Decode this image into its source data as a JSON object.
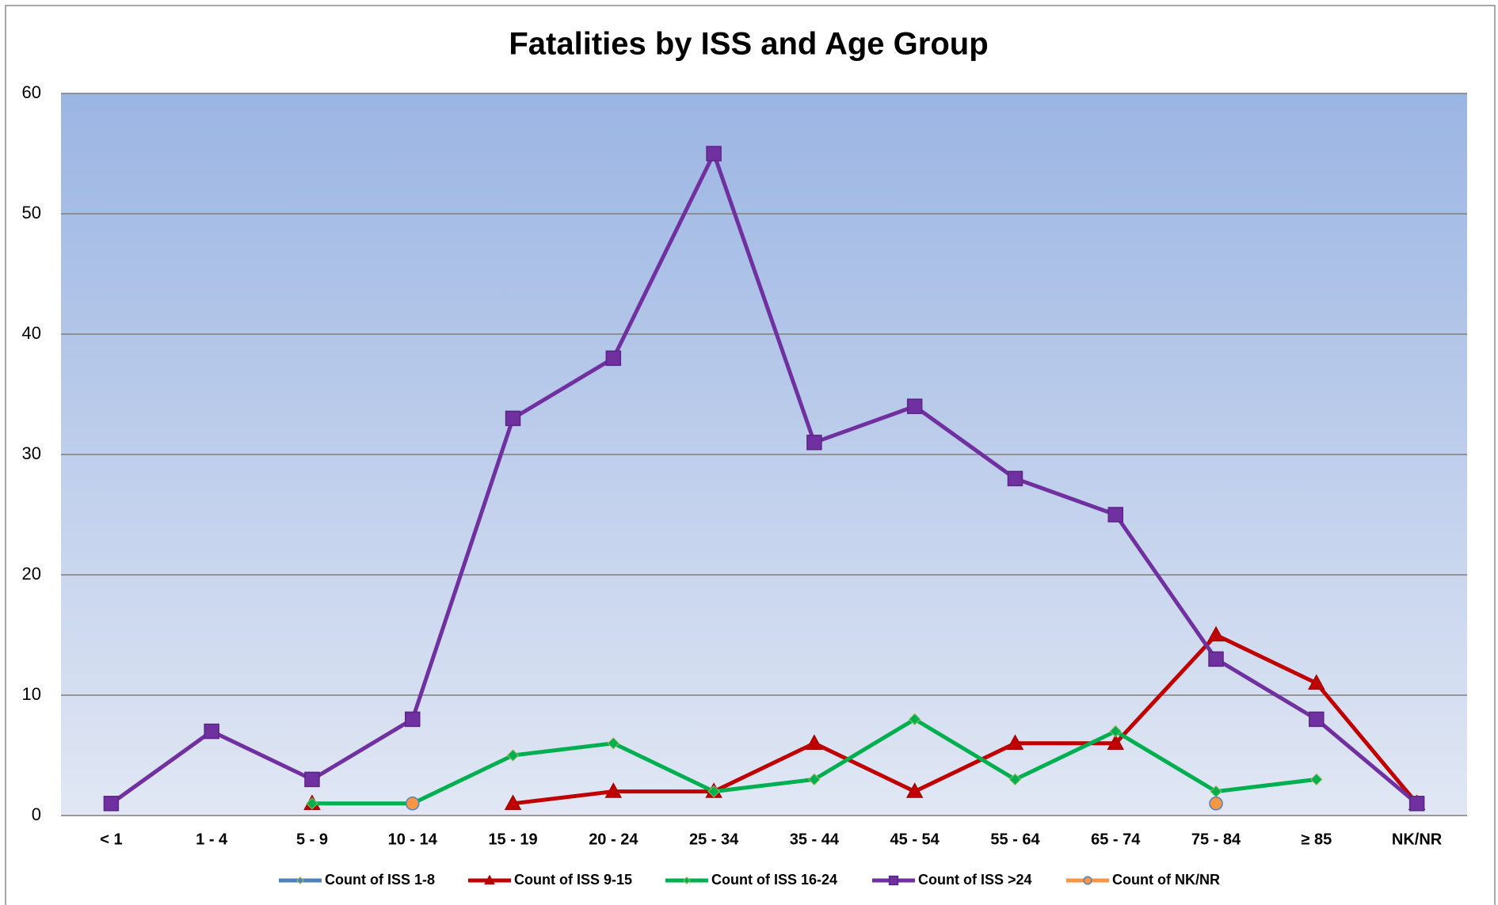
{
  "chart_data": {
    "type": "line",
    "title": "Fatalities by ISS and Age Group",
    "categories": [
      "< 1",
      "1 - 4",
      "5 - 9",
      "10 - 14",
      "15 - 19",
      "20 - 24",
      "25 - 34",
      "35 - 44",
      "45 - 54",
      "55 - 64",
      "65 - 74",
      "75 - 84",
      "≥ 85",
      "NK/NR"
    ],
    "series": [
      {
        "name": "Count of ISS 1-8",
        "color": "#4f81bd",
        "marker": "diamond",
        "values": [
          null,
          null,
          null,
          null,
          null,
          null,
          null,
          null,
          null,
          null,
          null,
          null,
          null,
          null
        ]
      },
      {
        "name": "Count of ISS 9-15",
        "color": "#c00000",
        "marker": "triangle",
        "values": [
          null,
          null,
          1,
          null,
          1,
          2,
          2,
          6,
          2,
          6,
          6,
          15,
          11,
          1
        ]
      },
      {
        "name": "Count of ISS 16-24",
        "color": "#00b050",
        "marker": "diamond",
        "values": [
          null,
          null,
          1,
          1,
          5,
          6,
          2,
          3,
          8,
          3,
          7,
          2,
          3,
          null
        ]
      },
      {
        "name": "Count of ISS >24",
        "color": "#7030a0",
        "marker": "square",
        "values": [
          1,
          7,
          3,
          8,
          33,
          38,
          55,
          31,
          34,
          28,
          25,
          13,
          8,
          1
        ]
      },
      {
        "name": "Count of NK/NR",
        "color": "#f79646",
        "marker": "circle",
        "values": [
          null,
          null,
          null,
          1,
          null,
          null,
          null,
          null,
          null,
          null,
          null,
          1,
          null,
          null
        ]
      }
    ],
    "ylim": [
      0,
      60
    ],
    "yticks": [
      0,
      10,
      20,
      30,
      40,
      50,
      60
    ],
    "grid": true,
    "legend": "bottom"
  }
}
